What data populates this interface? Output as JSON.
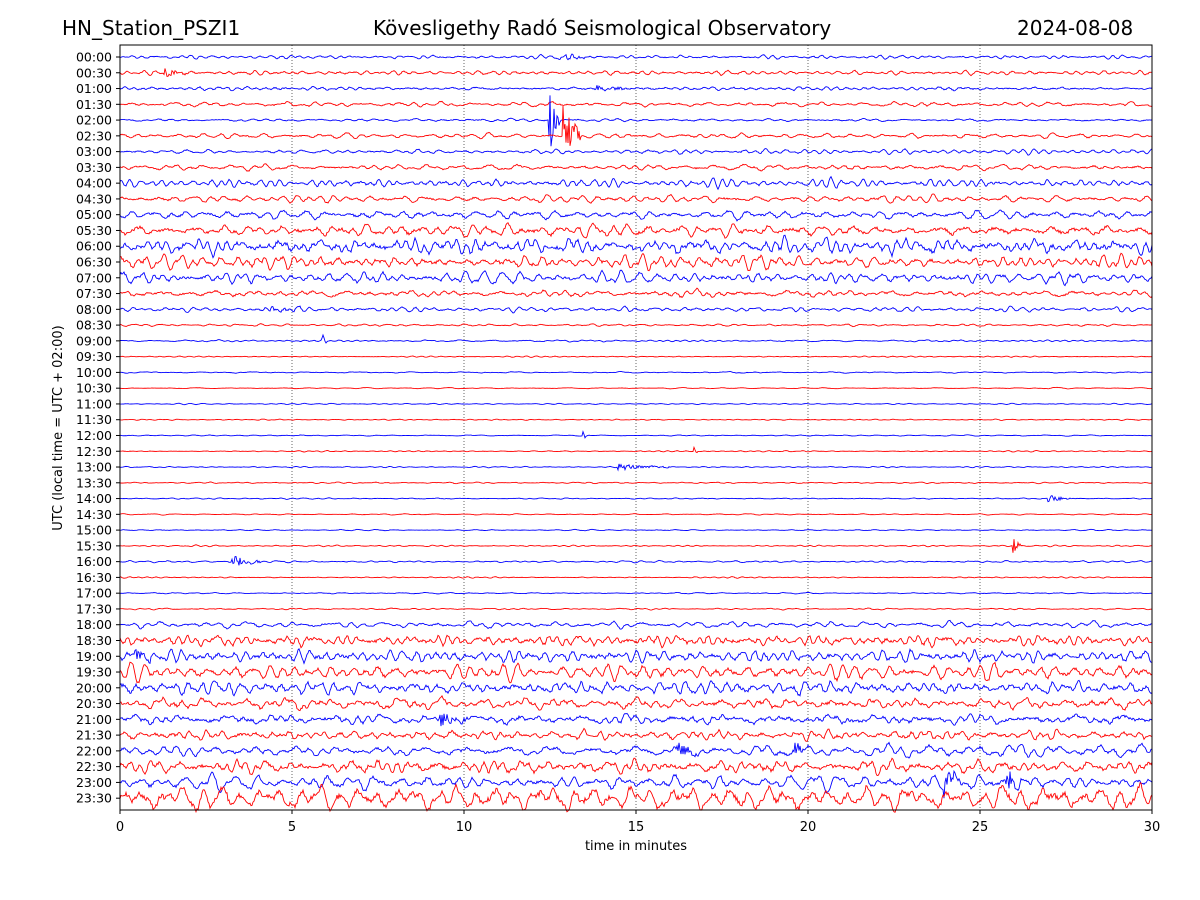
{
  "header": {
    "station": "HN_Station_PSZI1",
    "observatory": "Kövesligethy Radó Seismological Observatory",
    "date": "2024-08-08"
  },
  "chart_data": {
    "type": "line",
    "subtype": "helicorder",
    "xlabel": "time in minutes",
    "ylabel": "UTC (local time = UTC + 02:00)",
    "xlim": [
      0,
      30
    ],
    "xticks": [
      "0",
      "5",
      "10",
      "15",
      "20",
      "25",
      "30"
    ],
    "xtick_values": [
      0,
      5,
      10,
      15,
      20,
      25,
      30
    ],
    "grid": "vertical dotted at x ticks",
    "colors": [
      "#0000ff",
      "#ff0000"
    ],
    "rows": [
      "00:00",
      "00:30",
      "01:00",
      "01:30",
      "02:00",
      "02:30",
      "03:00",
      "03:30",
      "04:00",
      "04:30",
      "05:00",
      "05:30",
      "06:00",
      "06:30",
      "07:00",
      "07:30",
      "08:00",
      "08:30",
      "09:00",
      "09:30",
      "10:00",
      "10:30",
      "11:00",
      "11:30",
      "12:00",
      "12:30",
      "13:00",
      "13:30",
      "14:00",
      "14:30",
      "15:00",
      "15:30",
      "16:00",
      "16:30",
      "17:00",
      "17:30",
      "18:00",
      "18:30",
      "19:00",
      "19:30",
      "20:00",
      "20:30",
      "21:00",
      "21:30",
      "22:00",
      "22:30",
      "23:00",
      "23:30"
    ],
    "noise_level": [
      0.15,
      0.2,
      0.2,
      0.2,
      0.15,
      0.2,
      0.2,
      0.25,
      0.3,
      0.3,
      0.4,
      0.55,
      0.65,
      0.5,
      0.45,
      0.3,
      0.2,
      0.1,
      0.08,
      0.06,
      0.06,
      0.05,
      0.05,
      0.05,
      0.05,
      0.05,
      0.06,
      0.06,
      0.06,
      0.05,
      0.06,
      0.06,
      0.08,
      0.06,
      0.06,
      0.06,
      0.25,
      0.5,
      0.55,
      0.6,
      0.6,
      0.5,
      0.5,
      0.45,
      0.45,
      0.6,
      0.55,
      0.95
    ],
    "events": [
      {
        "row": "00:00",
        "minute": 12.8,
        "amplitude": 0.5,
        "duration": 1.0
      },
      {
        "row": "00:30",
        "minute": 1.3,
        "amplitude": 0.5,
        "duration": 0.8
      },
      {
        "row": "01:00",
        "minute": 13.9,
        "amplitude": 0.4,
        "duration": 1.0
      },
      {
        "row": "02:00",
        "minute": 12.5,
        "amplitude": 4.0,
        "duration": 0.3
      },
      {
        "row": "02:30",
        "minute": 12.9,
        "amplitude": 4.5,
        "duration": 0.5
      },
      {
        "row": "08:00",
        "minute": 4.3,
        "amplitude": 0.5,
        "duration": 1.0
      },
      {
        "row": "09:00",
        "minute": 5.9,
        "amplitude": 0.8,
        "duration": 0.1
      },
      {
        "row": "12:00",
        "minute": 13.5,
        "amplitude": 0.6,
        "duration": 0.1
      },
      {
        "row": "12:30",
        "minute": 16.7,
        "amplitude": 0.8,
        "duration": 0.1
      },
      {
        "row": "13:00",
        "minute": 14.5,
        "amplitude": 0.4,
        "duration": 1.5
      },
      {
        "row": "14:00",
        "minute": 27.0,
        "amplitude": 0.5,
        "duration": 0.7
      },
      {
        "row": "15:30",
        "minute": 26.0,
        "amplitude": 1.0,
        "duration": 0.2
      },
      {
        "row": "16:00",
        "minute": 3.3,
        "amplitude": 0.8,
        "duration": 0.8
      },
      {
        "row": "19:00",
        "minute": 0.3,
        "amplitude": 1.5,
        "duration": 0.6
      },
      {
        "row": "21:00",
        "minute": 9.3,
        "amplitude": 1.0,
        "duration": 0.8
      },
      {
        "row": "22:00",
        "minute": 16.2,
        "amplitude": 1.0,
        "duration": 0.8
      },
      {
        "row": "22:00",
        "minute": 19.6,
        "amplitude": 1.2,
        "duration": 0.3
      },
      {
        "row": "23:00",
        "minute": 24.0,
        "amplitude": 1.8,
        "duration": 0.5
      },
      {
        "row": "23:00",
        "minute": 25.8,
        "amplitude": 1.8,
        "duration": 0.6
      }
    ]
  }
}
